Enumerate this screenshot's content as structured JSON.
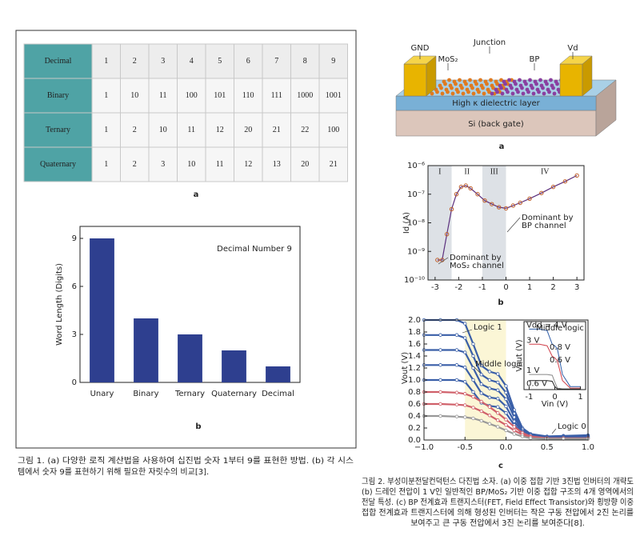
{
  "figure1": {
    "table": {
      "rows": [
        [
          "Decimal",
          "1",
          "2",
          "3",
          "4",
          "5",
          "6",
          "7",
          "8",
          "9"
        ],
        [
          "Binary",
          "1",
          "10",
          "11",
          "100",
          "101",
          "110",
          "111",
          "1000",
          "1001"
        ],
        [
          "Ternary",
          "1",
          "2",
          "10",
          "11",
          "12",
          "20",
          "21",
          "22",
          "100"
        ],
        [
          "Quaternary",
          "1",
          "2",
          "3",
          "10",
          "11",
          "12",
          "13",
          "20",
          "21"
        ]
      ]
    },
    "label_a": "a",
    "chart": {
      "type": "bar",
      "title": "Decimal Number 9",
      "y_label": "Word Length (Digits)",
      "categories": [
        "Unary",
        "Binary",
        "Ternary",
        "Quaternary",
        "Decimal"
      ],
      "values": [
        9,
        4,
        3,
        2,
        1
      ],
      "color": "#2e3f8f",
      "ylim": [
        0,
        9.75
      ],
      "yticks": [
        0,
        3,
        6,
        9
      ]
    },
    "label_b": "b",
    "caption": [
      "그림 1. (a) 다양한 로직 계산법을 사용하여 십진법 숫자 1부터 9를 표현한 방법. (b) 각 시스",
      "템에서 숫자 9를 표현하기 위해 필요한 자릿수의 비교[3]."
    ]
  },
  "figure2": {
    "device": {
      "labels": {
        "gnd": "GND",
        "junction": "Junction",
        "mos2": "MoS₂",
        "bp": "BP",
        "vd": "Vd",
        "dielectric": "High κ dielectric layer",
        "substrate": "Si (back gate)"
      }
    },
    "label_a": "a",
    "chart_b": {
      "type": "line",
      "y_label": "Id (A)",
      "log_y": true,
      "x": [
        -2.9,
        -2.7,
        -2.5,
        -2.3,
        -2.1,
        -1.9,
        -1.7,
        -1.5,
        -1.2,
        -0.9,
        -0.6,
        -0.3,
        0,
        0.3,
        0.6,
        1,
        1.5,
        2,
        2.5,
        3
      ],
      "values": [
        5e-10,
        5e-10,
        4e-09,
        3e-08,
        1e-07,
        1.8e-07,
        2e-07,
        1.6e-07,
        1e-07,
        6e-08,
        4.5e-08,
        3.5e-08,
        3.2e-08,
        4e-08,
        5e-08,
        7e-08,
        1.1e-07,
        1.8e-07,
        2.8e-07,
        4.5e-07
      ],
      "color": "#c0602a",
      "line_color": "#5b2f7d",
      "xlim": [
        -3.3,
        3.3
      ],
      "xticks": [
        -3,
        -2,
        -1,
        0,
        1,
        2,
        3
      ],
      "ylim": [
        1e-10,
        1e-06
      ],
      "yticks": [
        {
          "value": 1e-10,
          "label": "10⁻¹⁰"
        },
        {
          "value": 1e-09,
          "label": "10⁻⁹"
        },
        {
          "value": 1e-08,
          "label": "10⁻⁸"
        },
        {
          "value": 1e-07,
          "label": "10⁻⁷"
        },
        {
          "value": 1e-06,
          "label": "10⁻⁶"
        }
      ],
      "regions": [
        {
          "label": "I",
          "range": [
            -3.3,
            -2.3
          ],
          "shaded": true
        },
        {
          "label": "II",
          "range": [
            -2.3,
            -1
          ],
          "shaded": false
        },
        {
          "label": "III",
          "range": [
            -1,
            0
          ],
          "shaded": true
        },
        {
          "label": "IV",
          "range": [
            0,
            3.3
          ],
          "shaded": false
        }
      ],
      "annotations": [
        [
          "Dominant by",
          "MoS₂ channel"
        ],
        [
          "Dominant by",
          "BP channel"
        ]
      ]
    },
    "label_b": "b",
    "chart_c": {
      "type": "line",
      "y_label": "Vout (V)",
      "x": [
        -1,
        -0.8,
        -0.6,
        -0.5,
        -0.4,
        -0.3,
        -0.2,
        -0.1,
        0,
        0.1,
        0.2,
        0.3,
        0.5,
        0.7,
        1
      ],
      "xlim": [
        -1,
        1
      ],
      "xticks": [
        {
          "value": -1,
          "label": "−1.0"
        },
        -0.5,
        {
          "value": 0,
          "label": "0.0"
        },
        0.5,
        {
          "value": 1,
          "label": "1.0"
        }
      ],
      "ylim": [
        0,
        2
      ],
      "yticks": [
        {
          "value": 0,
          "label": "0.0"
        },
        0.2,
        0.4,
        0.6,
        0.8,
        {
          "value": 1,
          "label": "1.0"
        },
        1.2,
        1.4,
        1.6,
        1.8,
        {
          "value": 2,
          "label": "2.0"
        }
      ],
      "highlight": [
        -0.5,
        0
      ],
      "highlight_color": "#fbf6d6",
      "series": [
        {
          "color": "#3a5fa8",
          "values": [
            2,
            2,
            2,
            1.94,
            1.6,
            1.24,
            1.14,
            1.1,
            0.9,
            0.5,
            0.2,
            0.1,
            0.06,
            0.07,
            0.08
          ]
        },
        {
          "color": "#3a5fa8",
          "values": [
            1.75,
            1.75,
            1.75,
            1.7,
            1.4,
            1.09,
            1.0,
            0.96,
            0.79,
            0.44,
            0.18,
            0.09,
            0.05,
            0.06,
            0.07
          ]
        },
        {
          "color": "#3a5fa8",
          "values": [
            1.5,
            1.5,
            1.5,
            1.46,
            1.2,
            0.93,
            0.86,
            0.83,
            0.68,
            0.38,
            0.15,
            0.08,
            0.05,
            0.05,
            0.06
          ]
        },
        {
          "color": "#3a5fa8",
          "values": [
            1.25,
            1.25,
            1.25,
            1.21,
            1.0,
            0.78,
            0.71,
            0.69,
            0.56,
            0.31,
            0.13,
            0.06,
            0.04,
            0.04,
            0.05
          ]
        },
        {
          "color": "#3a5fa8",
          "values": [
            1,
            1,
            1,
            0.97,
            0.8,
            0.62,
            0.57,
            0.55,
            0.45,
            0.25,
            0.1,
            0.05,
            0.03,
            0.04,
            0.04
          ]
        },
        {
          "color": "#d0606a",
          "values": [
            0.8,
            0.8,
            0.79,
            0.77,
            0.72,
            0.64,
            0.55,
            0.45,
            0.34,
            0.22,
            0.12,
            0.06,
            0.03,
            0.03,
            0.03
          ]
        },
        {
          "color": "#d0606a",
          "values": [
            0.6,
            0.6,
            0.59,
            0.58,
            0.54,
            0.48,
            0.41,
            0.33,
            0.25,
            0.16,
            0.09,
            0.05,
            0.02,
            0.02,
            0.02
          ]
        },
        {
          "color": "#999999",
          "values": [
            0.4,
            0.4,
            0.39,
            0.38,
            0.36,
            0.32,
            0.27,
            0.22,
            0.16,
            0.1,
            0.06,
            0.03,
            0.02,
            0.02,
            0.02
          ]
        }
      ],
      "annotations": [
        "Logic 1",
        "Middle logic",
        "Logic 0"
      ],
      "inset": {
        "x_label": "Vin (V)",
        "y_label": "Vout (V)",
        "note": "Middle logic",
        "x": [
          -1,
          -0.6,
          -0.3,
          -0.1,
          0,
          0.1,
          0.3,
          0.6,
          1
        ],
        "xlim": [
          -1.2,
          1.2
        ],
        "xticks": [
          -1,
          0,
          1
        ],
        "ylim": [
          0,
          4.5
        ],
        "series": [
          {
            "label": "Vdd = 4 V",
            "color": "#2f5da8",
            "values": [
              4,
              4,
              3.9,
              3.0,
              2.9,
              2.7,
              1.0,
              0.2,
              0.2
            ]
          },
          {
            "label": "3 V",
            "color": "#d0404a",
            "values": [
              3,
              3,
              2.9,
              2.2,
              2.1,
              1.9,
              0.6,
              0.1,
              0.1
            ]
          },
          {
            "label": "1 V",
            "color": "#888888",
            "values": [
              1,
              1,
              1,
              0.95,
              0.5,
              0.1,
              0.05,
              0.05,
              0.05
            ]
          },
          {
            "label": "0.6 V",
            "color": "#222222",
            "values": [
              0.6,
              0.6,
              0.6,
              0.55,
              0.2,
              0.05,
              0.03,
              0.03,
              0.03
            ]
          }
        ],
        "gap_labels": [
          {
            "label": "0.8 V",
            "color": "#2f5da8"
          },
          {
            "label": "0.6 V",
            "color": "#d0404a"
          }
        ]
      }
    },
    "label_c": "c",
    "caption": [
      "그림 2. 부성미분전달컨덕턴스 다진법 소자. (a) 이중 접합 기반 3진법 인버터의 개략도",
      "(b) 드레인 전압이 1 V인 일반적인 BP/MoS₂ 기반 이중 접합 구조의 4개 영역에서의",
      "전달 특성. (c) BP 전계효과 트랜지스터(FET, Field Effect Transistor)와 횡방향 이중",
      "접합 전계효과 트랜지스터에 의해 형성된 인버터는 작은 구동 전압에서 2진 논리를",
      "보여주고 큰 구동 전압에서 3진 논리를 보여준다[8]."
    ]
  }
}
